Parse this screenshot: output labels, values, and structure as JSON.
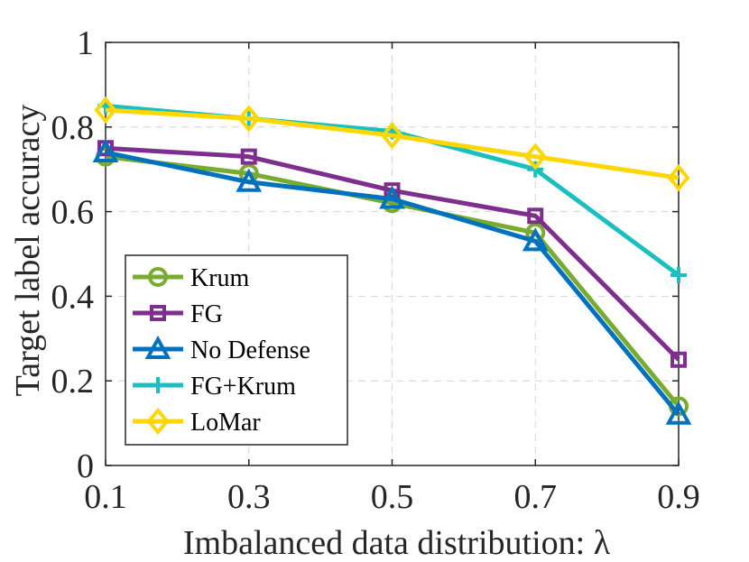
{
  "chart_data": {
    "type": "line",
    "title": "",
    "xlabel": "Imbalanced data distribution: λ",
    "ylabel": "Target label accuracy",
    "x": [
      0.1,
      0.3,
      0.5,
      0.7,
      0.9
    ],
    "x_tick_labels": [
      "0.1",
      "0.3",
      "0.5",
      "0.7",
      "0.9"
    ],
    "y_tick_labels": [
      "0",
      "0.2",
      "0.4",
      "0.6",
      "0.8",
      "1"
    ],
    "xlim": [
      0.1,
      0.9
    ],
    "ylim": [
      0,
      1
    ],
    "grid": true,
    "legend_position": "bottom-left",
    "series": [
      {
        "name": "Krum",
        "values": [
          0.73,
          0.69,
          0.62,
          0.55,
          0.14
        ],
        "color": "#77AC30",
        "marker": "circle"
      },
      {
        "name": "FG",
        "values": [
          0.75,
          0.73,
          0.65,
          0.59,
          0.25
        ],
        "color": "#7E2F8E",
        "marker": "square"
      },
      {
        "name": "No Defense",
        "values": [
          0.74,
          0.67,
          0.63,
          0.53,
          0.12
        ],
        "color": "#0072BD",
        "marker": "triangle"
      },
      {
        "name": "FG+Krum",
        "values": [
          0.85,
          0.82,
          0.79,
          0.7,
          0.45
        ],
        "color": "#1CBFBF",
        "marker": "plus"
      },
      {
        "name": "LoMar",
        "values": [
          0.84,
          0.82,
          0.78,
          0.73,
          0.68
        ],
        "color": "#FFD700",
        "marker": "diamond"
      }
    ]
  }
}
